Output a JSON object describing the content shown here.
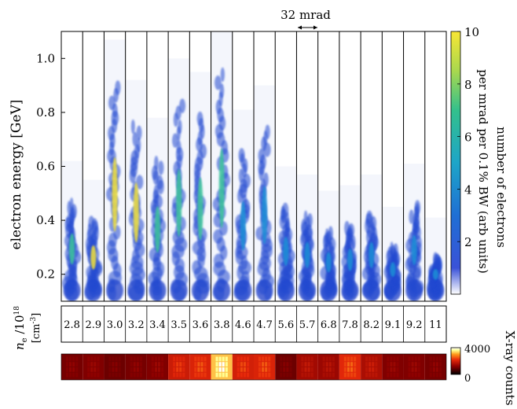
{
  "chart_data": [
    {
      "type": "heatmap",
      "description_kind": "electron energy spectra per shot",
      "ylabel": "electron energy [GeV]",
      "ylim": [
        0.1,
        1.1
      ],
      "yticks": [
        0.2,
        0.4,
        0.6,
        0.8,
        1.0
      ],
      "ytick_labels": [
        "0.2",
        "0.4",
        "0.6",
        "0.8",
        "1.0"
      ],
      "scale_annotation": "32 mrad",
      "colorbar": {
        "label_line1": "number of electrons",
        "label_line2": "per mrad per 0.1% BW  (arb units)",
        "range": [
          0,
          10
        ],
        "ticks": [
          "2",
          "4",
          "6",
          "8",
          "10"
        ],
        "colormap": [
          "#ffffff",
          "#1f3cc8",
          "#1e8fd6",
          "#21b8a6",
          "#8cd45a",
          "#f5e535"
        ]
      },
      "shots": [
        {
          "density": "2.8",
          "max_energy": 0.47,
          "peak": 0.8
        },
        {
          "density": "2.9",
          "max_energy": 0.4,
          "peak": 0.9
        },
        {
          "density": "3.0",
          "max_energy": 0.92,
          "peak": 1.0
        },
        {
          "density": "3.2",
          "max_energy": 0.77,
          "peak": 0.95
        },
        {
          "density": "3.4",
          "max_energy": 0.63,
          "peak": 0.8
        },
        {
          "density": "3.5",
          "max_energy": 0.85,
          "peak": 0.75
        },
        {
          "density": "3.6",
          "max_energy": 0.8,
          "peak": 0.75
        },
        {
          "density": "3.8",
          "max_energy": 0.97,
          "peak": 0.85
        },
        {
          "density": "4.6",
          "max_energy": 0.66,
          "peak": 0.55
        },
        {
          "density": "4.7",
          "max_energy": 0.75,
          "peak": 0.5
        },
        {
          "density": "5.6",
          "max_energy": 0.45,
          "peak": 0.45
        },
        {
          "density": "5.7",
          "max_energy": 0.42,
          "peak": 0.45
        },
        {
          "density": "6.8",
          "max_energy": 0.36,
          "peak": 0.4
        },
        {
          "density": "7.8",
          "max_energy": 0.38,
          "peak": 0.4
        },
        {
          "density": "8.2",
          "max_energy": 0.42,
          "peak": 0.4
        },
        {
          "density": "9.1",
          "max_energy": 0.3,
          "peak": 0.35
        },
        {
          "density": "9.2",
          "max_energy": 0.46,
          "peak": 0.4
        },
        {
          "density": "11",
          "max_energy": 0.26,
          "peak": 0.35
        }
      ]
    },
    {
      "type": "table",
      "row_label_line1": "n_e /10^18",
      "row_label_line2": "[cm^-3]",
      "values": [
        "2.8",
        "2.9",
        "3.0",
        "3.2",
        "3.4",
        "3.5",
        "3.6",
        "3.8",
        "4.6",
        "4.7",
        "5.6",
        "5.7",
        "6.8",
        "7.8",
        "8.2",
        "9.1",
        "9.2",
        "11"
      ]
    },
    {
      "type": "heatmap",
      "description_kind": "x-ray signal per shot",
      "colorbar": {
        "label": "X-ray counts",
        "range": [
          0,
          4000
        ],
        "ticks": [
          "0",
          "4000"
        ],
        "colormap": [
          "#000000",
          "#8b0000",
          "#e82a0a",
          "#ff9a1a",
          "#ffff90",
          "#ffffff"
        ]
      },
      "xray_counts": [
        1200,
        1300,
        1100,
        1200,
        1300,
        2200,
        2400,
        3800,
        2300,
        2400,
        1100,
        1700,
        1600,
        2500,
        1800,
        1300,
        1300,
        1200
      ]
    }
  ]
}
